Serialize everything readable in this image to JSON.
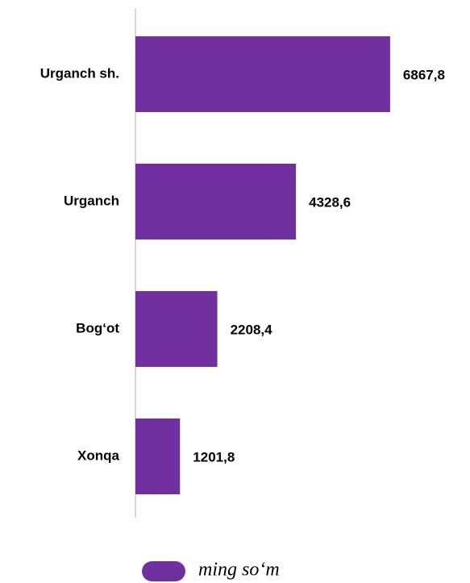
{
  "chart_data": {
    "type": "barh",
    "categories": [
      "Urganch sh.",
      "Urganch",
      "Bog‘ot",
      "Xonqa"
    ],
    "series": [
      {
        "name": "ming so‘m",
        "color": "#7030a0",
        "values": [
          6867.8,
          4328.6,
          2208.4,
          1201.8
        ],
        "value_labels": [
          "6867,8",
          "4328,6",
          "2208,4",
          "1201,8"
        ]
      }
    ],
    "xlim": [
      0,
      8000
    ],
    "legend": "bottom"
  }
}
